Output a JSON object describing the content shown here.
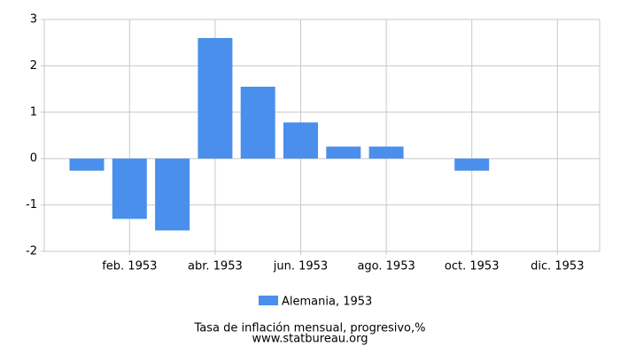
{
  "chart_data": {
    "type": "bar",
    "categories": [
      null,
      "feb. 1953",
      null,
      "abr. 1953",
      null,
      "jun. 1953",
      null,
      "ago. 1953",
      null,
      "oct. 1953",
      null,
      "dic. 1953"
    ],
    "series": [
      {
        "name": "Alemania, 1953",
        "color": "#4a8fec",
        "values": [
          -0.26,
          -1.3,
          -1.55,
          2.6,
          1.55,
          0.78,
          0.26,
          0.26,
          0,
          -0.26,
          0,
          0
        ]
      }
    ],
    "ylim": [
      -2,
      3
    ],
    "yticks": [
      -2,
      -1,
      0,
      1,
      2,
      3
    ],
    "grid": true,
    "legend": "bottom",
    "footer": [
      "Tasa de inflación mensual, progresivo,%",
      "www.statbureau.org"
    ]
  }
}
